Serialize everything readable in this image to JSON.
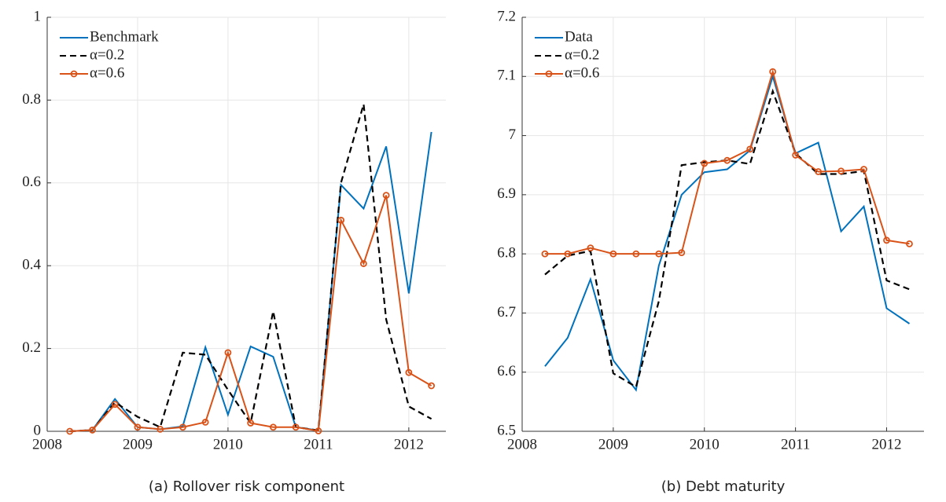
{
  "chart_data": [
    {
      "type": "line",
      "caption": "(a) Rollover risk component",
      "x": [
        2008.25,
        2008.5,
        2008.75,
        2009,
        2009.25,
        2009.5,
        2009.75,
        2010,
        2010.25,
        2010.5,
        2010.75,
        2011,
        2011.25,
        2011.5,
        2011.75,
        2012,
        2012.25
      ],
      "xlim": [
        2008,
        2012.41
      ],
      "xticks": [
        2008,
        2009,
        2010,
        2011,
        2012
      ],
      "ylim": [
        0,
        1
      ],
      "yticks": [
        0,
        0.2,
        0.4,
        0.6,
        0.8,
        1
      ],
      "grid": true,
      "legend": "upper-left",
      "series": [
        {
          "name": "Benchmark",
          "color": "#0072bd",
          "style": "solid",
          "values": [
            0,
            0.003,
            0.078,
            0.01,
            0.005,
            0.012,
            0.203,
            0.04,
            0.205,
            0.18,
            0.01,
            0.002,
            0.595,
            0.538,
            0.688,
            0.333,
            0.723
          ]
        },
        {
          "name": "α=0.2",
          "color": "#000000",
          "style": "dashed",
          "values": [
            0,
            0.003,
            0.07,
            0.035,
            0.01,
            0.19,
            0.185,
            0.1,
            0.02,
            0.29,
            0.01,
            0.002,
            0.6,
            0.79,
            0.27,
            0.06,
            0.03
          ]
        },
        {
          "name": "α=0.6",
          "color": "#d95319",
          "style": "solid",
          "marker": "circle",
          "values": [
            0,
            0.003,
            0.065,
            0.01,
            0.005,
            0.01,
            0.022,
            0.19,
            0.02,
            0.01,
            0.01,
            0.001,
            0.51,
            0.405,
            0.57,
            0.142,
            0.11
          ]
        }
      ]
    },
    {
      "type": "line",
      "caption": "(b) Debt maturity",
      "x": [
        2008.25,
        2008.5,
        2008.75,
        2009,
        2009.25,
        2009.5,
        2009.75,
        2010,
        2010.25,
        2010.5,
        2010.75,
        2011,
        2011.25,
        2011.5,
        2011.75,
        2012,
        2012.25
      ],
      "xlim": [
        2008,
        2012.41
      ],
      "xticks": [
        2008,
        2009,
        2010,
        2011,
        2012
      ],
      "ylim": [
        6.5,
        7.2
      ],
      "yticks": [
        6.5,
        6.6,
        6.7,
        6.8,
        6.9,
        7,
        7.1,
        7.2
      ],
      "grid": true,
      "legend": "upper-left",
      "series": [
        {
          "name": "Data",
          "color": "#0072bd",
          "style": "solid",
          "values": [
            6.61,
            6.658,
            6.757,
            6.62,
            6.57,
            6.78,
            6.9,
            6.938,
            6.943,
            6.975,
            7.1,
            6.97,
            6.988,
            6.838,
            6.88,
            6.708,
            6.682
          ]
        },
        {
          "name": "α=0.2",
          "color": "#000000",
          "style": "dashed",
          "values": [
            6.765,
            6.797,
            6.805,
            6.598,
            6.575,
            6.72,
            6.95,
            6.955,
            6.958,
            6.952,
            7.075,
            6.97,
            6.935,
            6.935,
            6.94,
            6.755,
            6.74
          ]
        },
        {
          "name": "α=0.6",
          "color": "#d95319",
          "style": "solid",
          "marker": "circle",
          "values": [
            6.8,
            6.8,
            6.81,
            6.8,
            6.8,
            6.8,
            6.802,
            6.953,
            6.958,
            6.977,
            7.108,
            6.967,
            6.939,
            6.94,
            6.943,
            6.823,
            6.817
          ]
        }
      ]
    }
  ]
}
